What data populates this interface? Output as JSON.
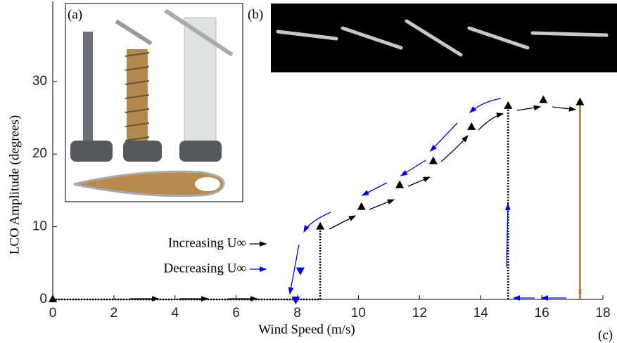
{
  "chart_data": {
    "type": "scatter",
    "xlabel": "Wind Speed (m/s)",
    "ylabel": "LCO Amplitude (degrees)",
    "xlim": [
      0,
      18
    ],
    "ylim": [
      0,
      41
    ],
    "xticks": [
      0,
      2,
      4,
      6,
      8,
      10,
      12,
      14,
      16,
      18
    ],
    "yticks": [
      0,
      10,
      20,
      30
    ],
    "series": [
      {
        "name": "Increasing U∞",
        "color": "#000000",
        "marker": "up",
        "x": [
          0,
          8.75,
          10.1,
          11.35,
          12.45,
          13.7,
          14.9,
          16.05,
          17.25
        ],
        "values": [
          0,
          10,
          12.7,
          15.7,
          19,
          23.7,
          26.6,
          27.4,
          27.1
        ]
      },
      {
        "name": "Decreasing U∞",
        "color": "#0000ee",
        "marker": "down",
        "x": [
          8.1,
          7.95
        ],
        "values": [
          4,
          0
        ]
      }
    ],
    "panel_labels": [
      "(a)",
      "(b)",
      "(c)"
    ]
  }
}
